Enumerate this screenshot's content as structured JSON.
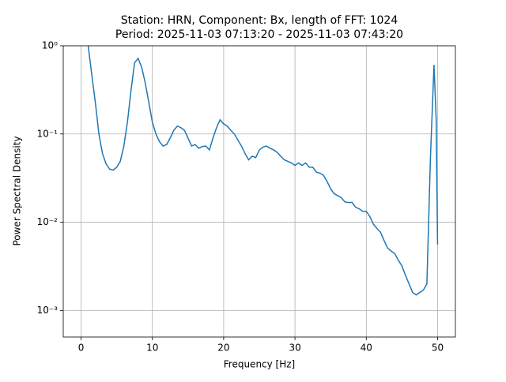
{
  "chart_data": {
    "type": "line",
    "title": "Station: HRN, Component: Bx, length of FFT: 1024",
    "subtitle": "Period: 2025-11-03 07:13:20 - 2025-11-03 07:43:20",
    "xlabel": "Frequency [Hz]",
    "ylabel": "Power Spectral Density",
    "x": [
      1,
      1.5,
      2,
      2.5,
      3,
      3.5,
      4,
      4.5,
      5,
      5.5,
      6,
      6.5,
      7,
      7.5,
      8,
      8.5,
      9,
      9.5,
      10,
      10.5,
      11,
      11.5,
      12,
      12.5,
      13,
      13.5,
      14,
      14.5,
      15,
      15.5,
      16,
      16.5,
      17,
      17.5,
      18,
      18.5,
      19,
      19.5,
      20,
      20.5,
      21,
      21.5,
      22,
      22.5,
      23,
      23.5,
      24,
      24.5,
      25,
      25.5,
      26,
      26.5,
      27,
      27.5,
      28,
      28.5,
      29,
      29.5,
      30,
      30.5,
      31,
      31.5,
      32,
      32.5,
      33,
      33.5,
      34,
      34.5,
      35,
      35.5,
      36,
      36.5,
      37,
      37.5,
      38,
      38.5,
      39,
      39.5,
      40,
      40.5,
      41,
      41.5,
      42,
      42.5,
      43,
      43.5,
      44,
      44.5,
      45,
      45.5,
      46,
      46.5,
      47,
      47.5,
      48,
      48.5,
      49,
      49.5,
      49.8,
      50
    ],
    "series": [
      {
        "name": "Bx",
        "color": "#1f77b4",
        "values": [
          1.0,
          0.47,
          0.228,
          0.1,
          0.06,
          0.046,
          0.04,
          0.039,
          0.042,
          0.049,
          0.073,
          0.136,
          0.31,
          0.64,
          0.72,
          0.57,
          0.38,
          0.228,
          0.136,
          0.1,
          0.082,
          0.073,
          0.076,
          0.09,
          0.11,
          0.123,
          0.118,
          0.11,
          0.09,
          0.073,
          0.076,
          0.069,
          0.072,
          0.073,
          0.066,
          0.09,
          0.118,
          0.145,
          0.13,
          0.123,
          0.11,
          0.1,
          0.085,
          0.073,
          0.06,
          0.051,
          0.056,
          0.054,
          0.066,
          0.071,
          0.073,
          0.069,
          0.066,
          0.062,
          0.056,
          0.051,
          0.049,
          0.047,
          0.044,
          0.047,
          0.044,
          0.047,
          0.042,
          0.042,
          0.037,
          0.036,
          0.034,
          0.029,
          0.024,
          0.021,
          0.02,
          0.019,
          0.017,
          0.0167,
          0.0168,
          0.0148,
          0.0142,
          0.0133,
          0.0133,
          0.0116,
          0.0095,
          0.0085,
          0.0077,
          0.0062,
          0.0051,
          0.0047,
          0.0044,
          0.0037,
          0.0032,
          0.0025,
          0.002,
          0.0016,
          0.0015,
          0.0016,
          0.0017,
          0.002,
          0.054,
          0.61,
          0.15,
          0.0056
        ]
      }
    ],
    "xlim": [
      -2.5,
      52.5
    ],
    "ylim": [
      0.0005,
      1
    ],
    "xticks": [
      0,
      10,
      20,
      30,
      40,
      50
    ],
    "yticks": [
      {
        "value": 1,
        "label": "10⁰"
      },
      {
        "value": 0.1,
        "label": "10⁻¹"
      },
      {
        "value": 0.01,
        "label": "10⁻²"
      },
      {
        "value": 0.001,
        "label": "10⁻³"
      }
    ],
    "ylog": true,
    "grid": true
  }
}
